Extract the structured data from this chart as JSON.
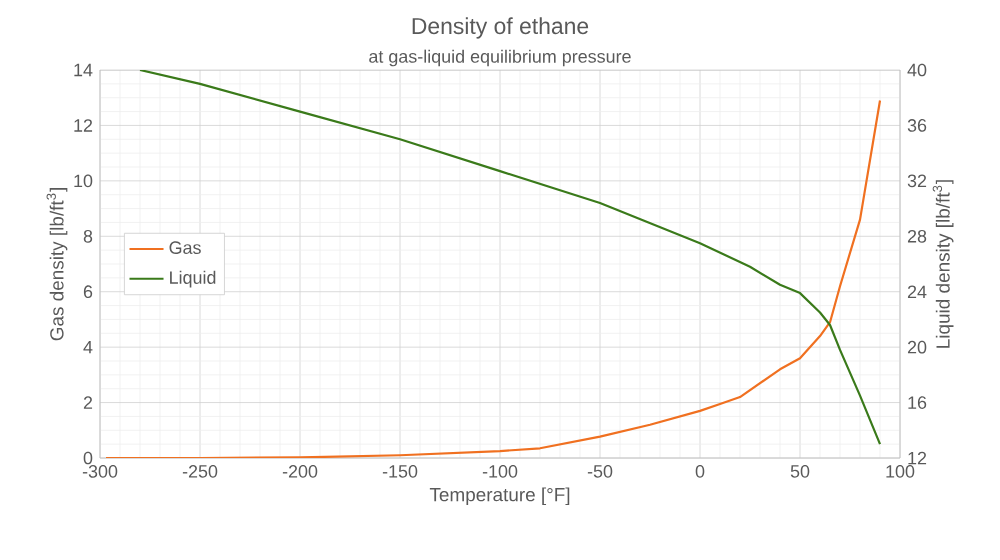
{
  "chart_data": {
    "type": "line",
    "title": "Density of ethane",
    "subtitle": "at gas-liquid equilibrium pressure",
    "xlabel": "Temperature  [°F]",
    "ylabel": "Gas density [lb/ft$^{3}$]",
    "y2label": "Liquid density [lb/ft$^{3}$]",
    "xlim": [
      -300,
      100
    ],
    "xticks": [
      -300,
      -250,
      -200,
      -150,
      -100,
      -50,
      0,
      50,
      100
    ],
    "ylim": [
      0,
      14
    ],
    "yticks": [
      0,
      2,
      4,
      6,
      8,
      10,
      12,
      14
    ],
    "y2lim": [
      12,
      40
    ],
    "y2ticks": [
      12,
      16,
      20,
      24,
      28,
      32,
      36,
      40
    ],
    "grid": true,
    "legend": "left",
    "series": [
      {
        "name": "Gas",
        "color": "#f07020",
        "x": [
          -297,
          -250,
          -200,
          -150,
          -100,
          -80,
          -50,
          -25,
          0,
          10,
          20,
          30,
          40,
          50,
          60,
          65,
          70,
          80,
          90
        ],
        "values": [
          0,
          0,
          0.02,
          0.1,
          0.25,
          0.35,
          0.77,
          1.2,
          1.7,
          1.95,
          2.2,
          2.7,
          3.2,
          3.6,
          4.4,
          4.9,
          6.2,
          8.6,
          12.9
        ]
      },
      {
        "name": "Liquid",
        "color": "#3a7a1a",
        "axis": "y2",
        "x": [
          -280,
          -250,
          -200,
          -150,
          -100,
          -50,
          0,
          25,
          40,
          50,
          60,
          65,
          70,
          80,
          90
        ],
        "values": [
          40,
          39,
          37,
          35,
          32.7,
          30.4,
          27.5,
          25.8,
          24.5,
          23.9,
          22.5,
          21.6,
          19.8,
          16.5,
          13
        ]
      }
    ]
  }
}
